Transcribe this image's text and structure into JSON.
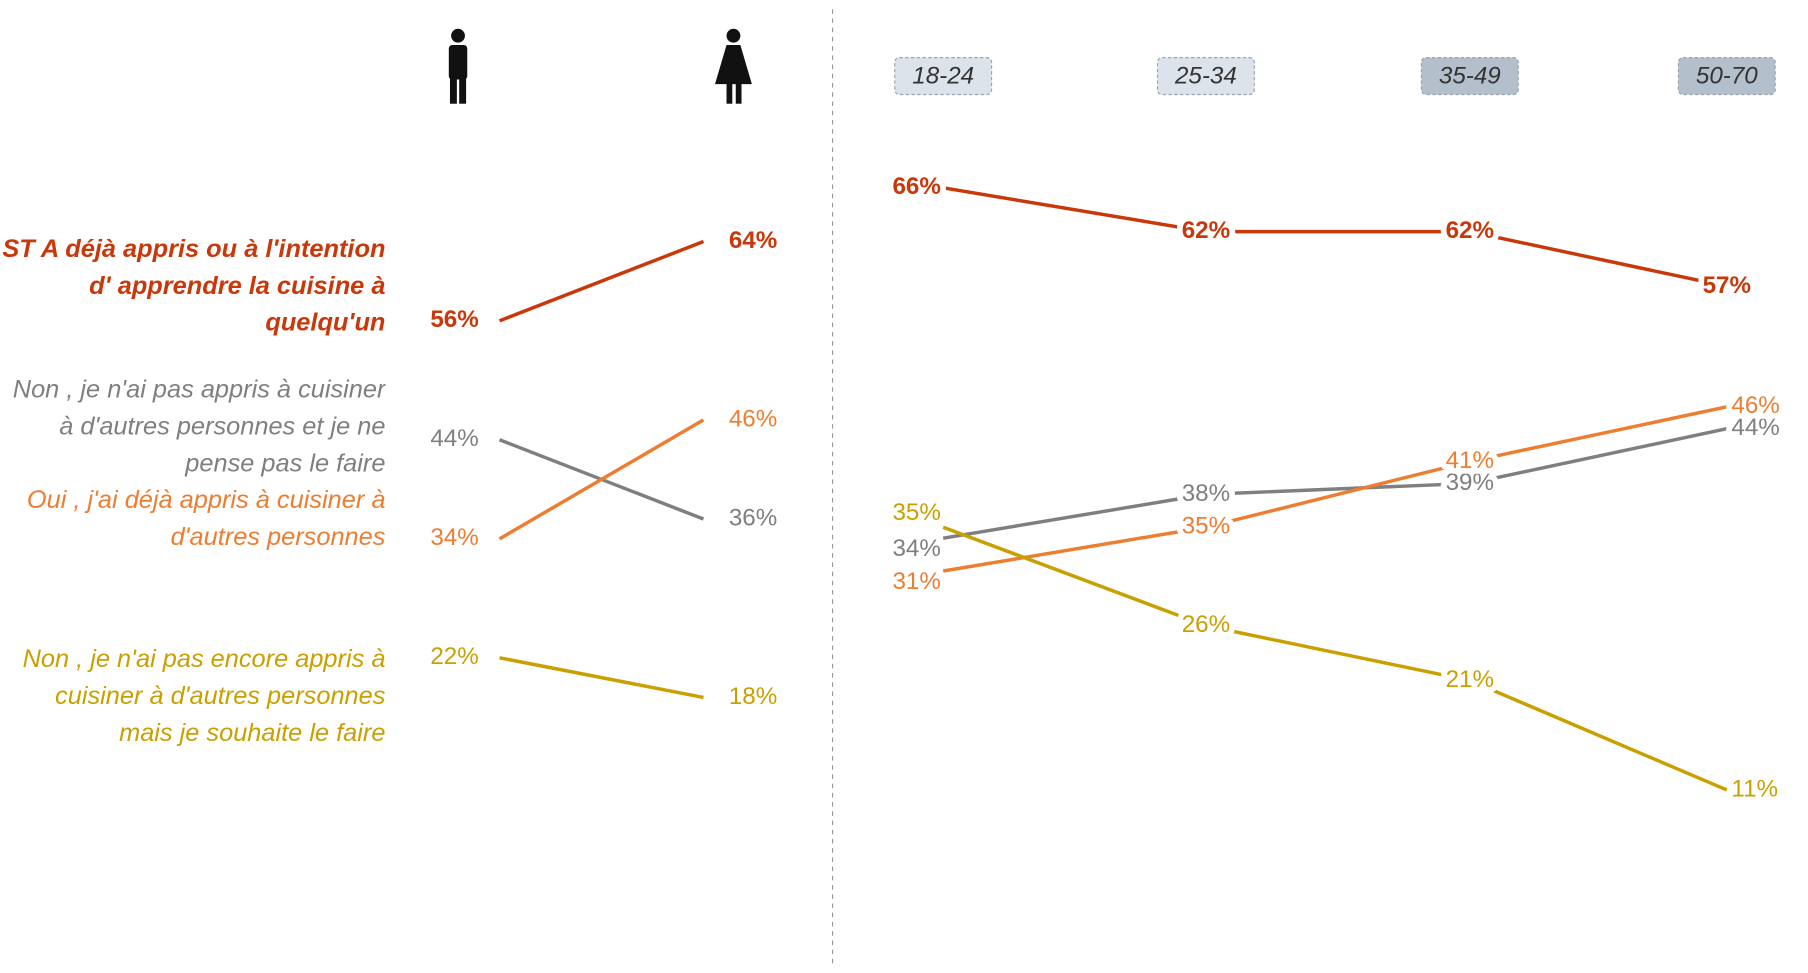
{
  "chart_data": [
    {
      "type": "slope",
      "categories": [
        null,
        null
      ],
      "series": [
        {
          "name": "ST A déjà appris ou à l'intention d' apprendre la cuisine à quelqu'un",
          "color": "#c8380a",
          "values": [
            56,
            64
          ],
          "value_labels": [
            "56%",
            "64%"
          ]
        },
        {
          "name": "Non , je n'ai pas appris à cuisiner à d'autres personnes et je ne pense pas le faire",
          "color": "#7f7f7f",
          "values": [
            44,
            36
          ],
          "value_labels": [
            "44%",
            "36%"
          ]
        },
        {
          "name": "Oui , j'ai déjà appris à cuisiner à d'autres personnes",
          "color": "#ed7d31",
          "values": [
            34,
            46
          ],
          "value_labels": [
            "34%",
            "46%"
          ]
        },
        {
          "name": "Non , je n'ai pas encore appris à cuisiner à d'autres personnes mais je souhaite le faire",
          "color": "#c9a000",
          "values": [
            22,
            18
          ],
          "value_labels": [
            "22%",
            "18%"
          ]
        }
      ]
    },
    {
      "type": "slope",
      "categories": [
        "18-24",
        "25-34",
        "35-49",
        "50-70"
      ],
      "series": [
        {
          "color": "#c8380a",
          "values": [
            66,
            62,
            62,
            57
          ],
          "value_labels": [
            "66%",
            "62%",
            "62%",
            "57%"
          ]
        },
        {
          "color": "#7f7f7f",
          "values": [
            34,
            38,
            39,
            44
          ],
          "value_labels": [
            "34%",
            "38%",
            "39%",
            "44%"
          ]
        },
        {
          "color": "#ed7d31",
          "values": [
            31,
            35,
            41,
            46
          ],
          "value_labels": [
            "31%",
            "35%",
            "41%",
            "46%"
          ]
        },
        {
          "color": "#c9a000",
          "values": [
            35,
            26,
            21,
            11
          ],
          "value_labels": [
            "35%",
            "26%",
            "21%",
            "11%"
          ]
        }
      ]
    }
  ]
}
